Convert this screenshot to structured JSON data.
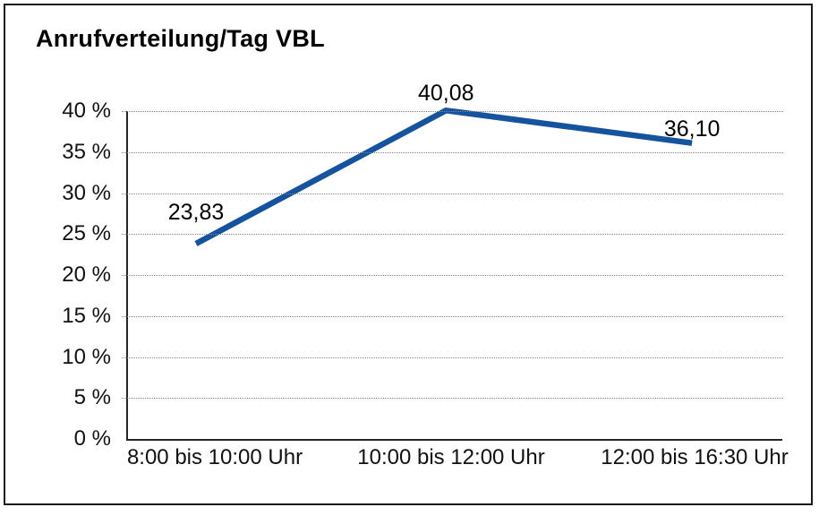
{
  "page": {
    "title": "Anrufverteilung/Tag VBL"
  },
  "chart_data": {
    "type": "line",
    "title": "Anrufverteilung/Tag VBL",
    "categories": [
      "8:00 bis 10:00 Uhr",
      "10:00 bis 12:00 Uhr",
      "12:00 bis 16:30 Uhr"
    ],
    "values": [
      23.83,
      40.08,
      36.1
    ],
    "value_labels": [
      "23,83",
      "40,08",
      "36,10"
    ],
    "series": [
      {
        "name": "Anrufverteilung/Tag VBL",
        "values": [
          23.83,
          40.08,
          36.1
        ]
      }
    ],
    "xlabel": "",
    "ylabel": "",
    "ylim": [
      0,
      40
    ],
    "yticks": [
      40,
      35,
      30,
      25,
      20,
      15,
      10,
      5,
      0
    ],
    "ytick_labels": [
      "40 %",
      "35 %",
      "30 %",
      "25 %",
      "20 %",
      "15 %",
      "10 %",
      "5 %",
      "0 %"
    ],
    "grid": "horizontal-dotted",
    "legend": "none",
    "line_color": "#15539e",
    "axis_color": "#262626",
    "gridline_color": "#858585",
    "data_label_position": "above-points"
  }
}
